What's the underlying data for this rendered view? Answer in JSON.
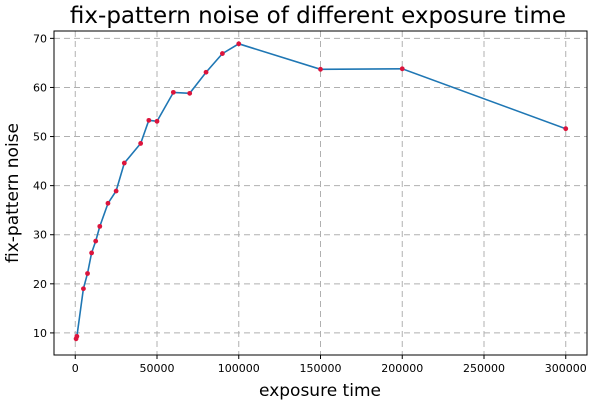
{
  "chart_data": {
    "type": "line",
    "title": "fix-pattern noise of different exposure time",
    "xlabel": "exposure time",
    "ylabel": "fix-pattern noise",
    "xlim": [
      -13000,
      313000
    ],
    "ylim": [
      5.5,
      71.5
    ],
    "xticks": [
      0,
      50000,
      100000,
      150000,
      200000,
      250000,
      300000
    ],
    "xtick_labels": [
      "0",
      "50000",
      "100000",
      "150000",
      "200000",
      "250000",
      "300000"
    ],
    "yticks": [
      10,
      20,
      30,
      40,
      50,
      60,
      70
    ],
    "ytick_labels": [
      "10",
      "20",
      "30",
      "40",
      "50",
      "60",
      "70"
    ],
    "grid": true,
    "line_color": "#1f77b4",
    "marker_color": "#dc143c",
    "x": [
      500,
      1000,
      5000,
      7500,
      10000,
      12500,
      15000,
      20000,
      25000,
      30000,
      40000,
      45000,
      50000,
      60000,
      70000,
      80000,
      90000,
      100000,
      150000,
      200000,
      300000
    ],
    "y": [
      8.8,
      9.3,
      19.0,
      22.1,
      26.3,
      28.7,
      31.7,
      36.4,
      38.9,
      44.6,
      48.6,
      53.3,
      53.1,
      59.0,
      58.8,
      63.1,
      66.9,
      68.9,
      63.7,
      63.8,
      51.6
    ]
  }
}
